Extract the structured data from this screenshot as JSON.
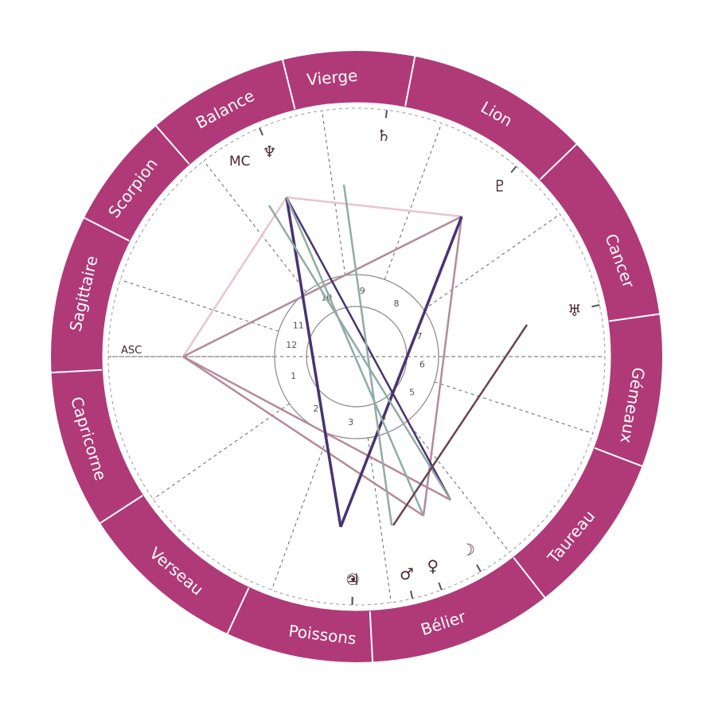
{
  "colors": {
    "ring": "#b03a78",
    "ring_divider": "#ffffff",
    "house_line": "#666666",
    "inner_circle": "#888888",
    "glyph": "#4a2a30"
  },
  "zodiac_signs": [
    {
      "name": "Vierge",
      "mid_angle": 95
    },
    {
      "name": "Lion",
      "mid_angle": 60
    },
    {
      "name": "Cancer",
      "mid_angle": 20
    },
    {
      "name": "Gémeaux",
      "mid_angle": -10
    },
    {
      "name": "Taureau",
      "mid_angle": -40
    },
    {
      "name": "Bélier",
      "mid_angle": -72
    },
    {
      "name": "Poissons",
      "mid_angle": -97
    },
    {
      "name": "Verseau",
      "mid_angle": -130
    },
    {
      "name": "Capricorne",
      "mid_angle": -163
    },
    {
      "name": "Sagittaire",
      "mid_angle": 167
    },
    {
      "name": "Scorpion",
      "mid_angle": 143
    },
    {
      "name": "Balance",
      "mid_angle": 118
    }
  ],
  "sign_dividers": [
    79,
    44,
    8,
    -21,
    -52,
    -87,
    -115,
    -147,
    -177,
    153,
    131,
    104
  ],
  "houses": [
    {
      "num": "1",
      "cusp": 180,
      "label_angle": -163
    },
    {
      "num": "2",
      "cusp": -145,
      "label_angle": -128
    },
    {
      "num": "3",
      "cusp": -110,
      "label_angle": -95
    },
    {
      "num": "4",
      "cusp": -82,
      "label_angle": -66
    },
    {
      "num": "5",
      "cusp": -52,
      "label_angle": -33
    },
    {
      "num": "6",
      "cusp": -18,
      "label_angle": -7
    },
    {
      "num": "7",
      "cusp": 0,
      "label_angle": 18
    },
    {
      "num": "8",
      "cusp": 35,
      "label_angle": 53
    },
    {
      "num": "9",
      "cusp": 70,
      "label_angle": 85
    },
    {
      "num": "10",
      "cusp": 98,
      "label_angle": 117
    },
    {
      "num": "11",
      "cusp": 128,
      "label_angle": 152
    },
    {
      "num": "12",
      "cusp": 162,
      "label_angle": 170
    }
  ],
  "axes": {
    "asc": "ASC",
    "mc": "MC"
  },
  "planets": [
    {
      "name": "saturn",
      "glyph": "♄",
      "angle": 83,
      "radius": 280
    },
    {
      "name": "neptune",
      "glyph": "♆",
      "angle": 113,
      "radius": 280
    },
    {
      "name": "pluto",
      "glyph": "♇",
      "angle": 50,
      "radius": 280
    },
    {
      "name": "uranus",
      "glyph": "♅",
      "angle": 12,
      "radius": 280
    },
    {
      "name": "moon",
      "glyph": "☽",
      "angle": -60,
      "radius": 280
    },
    {
      "name": "venus",
      "glyph": "♀",
      "angle": -70,
      "radius": 280
    },
    {
      "name": "mars",
      "glyph": "♂",
      "angle": -77,
      "radius": 280
    },
    {
      "name": "jupiter",
      "glyph": "♃",
      "angle": -91,
      "radius": 280
    },
    {
      "name": "sun",
      "glyph": "☉",
      "angle": -91,
      "radius": 280
    }
  ],
  "aspects": [
    {
      "from": [
        230,
        448
      ],
      "to": [
        360,
        248
      ],
      "color": "#e8c4cf",
      "width": 2.5
    },
    {
      "from": [
        360,
        248
      ],
      "to": [
        580,
        272
      ],
      "color": "#e8c4cf",
      "width": 2.5
    },
    {
      "from": [
        230,
        448
      ],
      "to": [
        580,
        272
      ],
      "color": "#b48b9b",
      "width": 2.5
    },
    {
      "from": [
        230,
        448
      ],
      "to": [
        566,
        628
      ],
      "color": "#b48b9b",
      "width": 2.5
    },
    {
      "from": [
        230,
        448
      ],
      "to": [
        532,
        648
      ],
      "color": "#b48b9b",
      "width": 2.5
    },
    {
      "from": [
        580,
        272
      ],
      "to": [
        532,
        648
      ],
      "color": "#b48b9b",
      "width": 2.5
    },
    {
      "from": [
        360,
        248
      ],
      "to": [
        428,
        662
      ],
      "color": "#4a3370",
      "width": 3.5
    },
    {
      "from": [
        428,
        662
      ],
      "to": [
        580,
        272
      ],
      "color": "#4a3370",
      "width": 3.5
    },
    {
      "from": [
        360,
        248
      ],
      "to": [
        566,
        628
      ],
      "color": "#4a3370",
      "width": 2.5
    },
    {
      "from": [
        338,
        258
      ],
      "to": [
        566,
        628
      ],
      "color": "#8faca5",
      "width": 2.5
    },
    {
      "from": [
        432,
        232
      ],
      "to": [
        492,
        660
      ],
      "color": "#8faca5",
      "width": 2.5
    },
    {
      "from": [
        360,
        248
      ],
      "to": [
        532,
        648
      ],
      "color": "#8faca5",
      "width": 2.5
    },
    {
      "from": [
        662,
        408
      ],
      "to": [
        494,
        660
      ],
      "color": "#6a4450",
      "width": 2.5
    }
  ]
}
